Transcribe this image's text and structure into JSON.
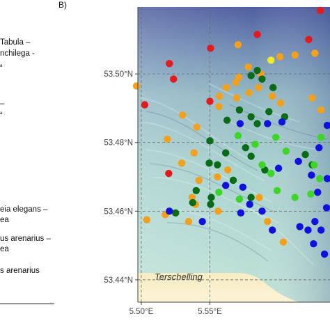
{
  "panel_label": "B)",
  "legend_fragments": [
    "Tabula –",
    "nchilega -",
    "ᵃ",
    "–",
    "ᵃ",
    "eia elegans –",
    "ea",
    "us arenarius –",
    "ea",
    "s arenarius"
  ],
  "axes": {
    "lat_ticks": [
      {
        "value": 53.5,
        "label": "53.50°N"
      },
      {
        "value": 53.48,
        "label": "53.48°N"
      },
      {
        "value": 53.46,
        "label": "53.46°N"
      },
      {
        "value": 53.44,
        "label": "53.44°N"
      }
    ],
    "lon_ticks": [
      {
        "value": 5.5,
        "label": "5.50°E"
      },
      {
        "value": 5.55,
        "label": "5.55°E"
      }
    ],
    "lon_range": [
      5.4975,
      5.6375
    ],
    "lat_range": [
      53.4335,
      53.5195
    ],
    "grid": "dashed",
    "place_label": "Terschelling"
  },
  "colors": {
    "red": "#e41a1c",
    "orange": "#f5a01a",
    "yellow": "#f2ef1d",
    "light_green": "#3dd626",
    "dark_green": "#0a6b16",
    "blue": "#1010e0"
  },
  "points": [
    {
      "lon": 5.4965,
      "lat": 53.4965,
      "group": "orange"
    },
    {
      "lon": 5.5235,
      "lat": 53.4985,
      "group": "red"
    },
    {
      "lon": 5.5205,
      "lat": 53.503,
      "group": "red"
    },
    {
      "lon": 5.5505,
      "lat": 53.5075,
      "group": "red"
    },
    {
      "lon": 5.5845,
      "lat": 53.5115,
      "group": "red"
    },
    {
      "lon": 5.622,
      "lat": 53.51,
      "group": "red"
    },
    {
      "lon": 5.6305,
      "lat": 53.5185,
      "group": "red"
    },
    {
      "lon": 5.5025,
      "lat": 53.491,
      "group": "red"
    },
    {
      "lon": 5.55,
      "lat": 53.492,
      "group": "red"
    },
    {
      "lon": 5.52,
      "lat": 53.471,
      "group": "red"
    },
    {
      "lon": 5.5705,
      "lat": 53.5085,
      "group": "orange"
    },
    {
      "lon": 5.601,
      "lat": 53.505,
      "group": "orange"
    },
    {
      "lon": 5.612,
      "lat": 53.5055,
      "group": "orange"
    },
    {
      "lon": 5.6265,
      "lat": 53.506,
      "group": "orange"
    },
    {
      "lon": 5.5945,
      "lat": 53.504,
      "group": "yellow"
    },
    {
      "lon": 5.587,
      "lat": 53.5,
      "group": "orange"
    },
    {
      "lon": 5.578,
      "lat": 53.502,
      "group": "orange"
    },
    {
      "lon": 5.571,
      "lat": 53.499,
      "group": "orange"
    },
    {
      "lon": 5.569,
      "lat": 53.4975,
      "group": "orange"
    },
    {
      "lon": 5.5855,
      "lat": 53.496,
      "group": "orange"
    },
    {
      "lon": 5.562,
      "lat": 53.496,
      "group": "orange"
    },
    {
      "lon": 5.5785,
      "lat": 53.4945,
      "group": "orange"
    },
    {
      "lon": 5.5695,
      "lat": 53.493,
      "group": "orange"
    },
    {
      "lon": 5.557,
      "lat": 53.4935,
      "group": "orange"
    },
    {
      "lon": 5.5955,
      "lat": 53.4935,
      "group": "orange"
    },
    {
      "lon": 5.6015,
      "lat": 53.4915,
      "group": "orange"
    },
    {
      "lon": 5.6245,
      "lat": 53.493,
      "group": "orange"
    },
    {
      "lon": 5.631,
      "lat": 53.4895,
      "group": "orange"
    },
    {
      "lon": 5.5405,
      "lat": 53.4845,
      "group": "orange"
    },
    {
      "lon": 5.53,
      "lat": 53.488,
      "group": "orange"
    },
    {
      "lon": 5.519,
      "lat": 53.481,
      "group": "orange"
    },
    {
      "lon": 5.5565,
      "lat": 53.4905,
      "group": "orange"
    },
    {
      "lon": 5.5385,
      "lat": 53.477,
      "group": "orange"
    },
    {
      "lon": 5.5295,
      "lat": 53.474,
      "group": "orange"
    },
    {
      "lon": 5.542,
      "lat": 53.469,
      "group": "orange"
    },
    {
      "lon": 5.537,
      "lat": 53.464,
      "group": "orange"
    },
    {
      "lon": 5.5395,
      "lat": 53.462,
      "group": "orange"
    },
    {
      "lon": 5.5175,
      "lat": 53.459,
      "group": "orange"
    },
    {
      "lon": 5.563,
      "lat": 53.472,
      "group": "orange"
    },
    {
      "lon": 5.5555,
      "lat": 53.47,
      "group": "orange"
    },
    {
      "lon": 5.504,
      "lat": 53.4575,
      "group": "orange"
    },
    {
      "lon": 5.5345,
      "lat": 53.457,
      "group": "orange"
    },
    {
      "lon": 5.556,
      "lat": 53.46,
      "group": "orange"
    },
    {
      "lon": 5.586,
      "lat": 53.464,
      "group": "orange"
    },
    {
      "lon": 5.592,
      "lat": 53.457,
      "group": "orange"
    },
    {
      "lon": 5.6035,
      "lat": 53.451,
      "group": "orange"
    },
    {
      "lon": 5.58,
      "lat": 53.4995,
      "group": "dark_green"
    },
    {
      "lon": 5.5845,
      "lat": 53.501,
      "group": "dark_green"
    },
    {
      "lon": 5.588,
      "lat": 53.4985,
      "group": "dark_green"
    },
    {
      "lon": 5.596,
      "lat": 53.496,
      "group": "dark_green"
    },
    {
      "lon": 5.593,
      "lat": 53.489,
      "group": "dark_green"
    },
    {
      "lon": 5.5715,
      "lat": 53.4895,
      "group": "dark_green"
    },
    {
      "lon": 5.58,
      "lat": 53.4875,
      "group": "dark_green"
    },
    {
      "lon": 5.5625,
      "lat": 53.4865,
      "group": "dark_green"
    },
    {
      "lon": 5.5845,
      "lat": 53.4855,
      "group": "dark_green"
    },
    {
      "lon": 5.6045,
      "lat": 53.4875,
      "group": "dark_green"
    },
    {
      "lon": 5.576,
      "lat": 53.4785,
      "group": "dark_green"
    },
    {
      "lon": 5.5615,
      "lat": 53.477,
      "group": "dark_green"
    },
    {
      "lon": 5.55,
      "lat": 53.4805,
      "group": "dark_green"
    },
    {
      "lon": 5.5495,
      "lat": 53.474,
      "group": "dark_green"
    },
    {
      "lon": 5.5555,
      "lat": 53.4735,
      "group": "dark_green"
    },
    {
      "lon": 5.58,
      "lat": 53.476,
      "group": "dark_green"
    },
    {
      "lon": 5.59,
      "lat": 53.472,
      "group": "dark_green"
    },
    {
      "lon": 5.567,
      "lat": 53.469,
      "group": "dark_green"
    },
    {
      "lon": 5.54,
      "lat": 53.466,
      "group": "dark_green"
    },
    {
      "lon": 5.5375,
      "lat": 53.4625,
      "group": "dark_green"
    },
    {
      "lon": 5.551,
      "lat": 53.464,
      "group": "dark_green"
    },
    {
      "lon": 5.58,
      "lat": 53.464,
      "group": "dark_green"
    },
    {
      "lon": 5.5505,
      "lat": 53.462,
      "group": "dark_green"
    },
    {
      "lon": 5.525,
      "lat": 53.4595,
      "group": "dark_green"
    },
    {
      "lon": 5.6195,
      "lat": 53.4765,
      "group": "dark_green"
    },
    {
      "lon": 5.6245,
      "lat": 53.4735,
      "group": "dark_green"
    },
    {
      "lon": 5.583,
      "lat": 53.4795,
      "group": "light_green"
    },
    {
      "lon": 5.5705,
      "lat": 53.482,
      "group": "light_green"
    },
    {
      "lon": 5.598,
      "lat": 53.4815,
      "group": "light_green"
    },
    {
      "lon": 5.6055,
      "lat": 53.4775,
      "group": "light_green"
    },
    {
      "lon": 5.588,
      "lat": 53.4735,
      "group": "light_green"
    },
    {
      "lon": 5.5945,
      "lat": 53.471,
      "group": "light_green"
    },
    {
      "lon": 5.599,
      "lat": 53.466,
      "group": "light_green"
    },
    {
      "lon": 5.5715,
      "lat": 53.4635,
      "group": "light_green"
    },
    {
      "lon": 5.5565,
      "lat": 53.4655,
      "group": "light_green"
    },
    {
      "lon": 5.612,
      "lat": 53.464,
      "group": "light_green"
    },
    {
      "lon": 5.631,
      "lat": 53.4815,
      "group": "light_green"
    },
    {
      "lon": 5.626,
      "lat": 53.4735,
      "group": "light_green"
    },
    {
      "lon": 5.6235,
      "lat": 53.465,
      "group": "light_green"
    },
    {
      "lon": 5.63,
      "lat": 53.4695,
      "group": "light_green"
    },
    {
      "lon": 5.592,
      "lat": 53.4855,
      "group": "blue"
    },
    {
      "lon": 5.572,
      "lat": 53.4855,
      "group": "blue"
    },
    {
      "lon": 5.6025,
      "lat": 53.486,
      "group": "blue"
    },
    {
      "lon": 5.6355,
      "lat": 53.485,
      "group": "blue"
    },
    {
      "lon": 5.6295,
      "lat": 53.4785,
      "group": "blue"
    },
    {
      "lon": 5.6145,
      "lat": 53.4745,
      "group": "blue"
    },
    {
      "lon": 5.6,
      "lat": 53.4725,
      "group": "blue"
    },
    {
      "lon": 5.624,
      "lat": 53.4705,
      "group": "blue"
    },
    {
      "lon": 5.5615,
      "lat": 53.4675,
      "group": "blue"
    },
    {
      "lon": 5.574,
      "lat": 53.467,
      "group": "blue"
    },
    {
      "lon": 5.6285,
      "lat": 53.4655,
      "group": "blue"
    },
    {
      "lon": 5.579,
      "lat": 53.462,
      "group": "blue"
    },
    {
      "lon": 5.588,
      "lat": 53.46,
      "group": "blue"
    },
    {
      "lon": 5.5725,
      "lat": 53.4595,
      "group": "blue"
    },
    {
      "lon": 5.5955,
      "lat": 53.4545,
      "group": "blue"
    },
    {
      "lon": 5.5445,
      "lat": 53.457,
      "group": "blue"
    },
    {
      "lon": 5.6155,
      "lat": 53.4555,
      "group": "blue"
    },
    {
      "lon": 5.6215,
      "lat": 53.4545,
      "group": "blue"
    },
    {
      "lon": 5.631,
      "lat": 53.4545,
      "group": "blue"
    },
    {
      "lon": 5.6255,
      "lat": 53.4505,
      "group": "blue"
    },
    {
      "lon": 5.6265,
      "lat": 53.457,
      "group": "blue"
    },
    {
      "lon": 5.5205,
      "lat": 53.46,
      "group": "blue"
    },
    {
      "lon": 5.6335,
      "lat": 53.4475,
      "group": "blue"
    },
    {
      "lon": 5.635,
      "lat": 53.461,
      "group": "blue"
    },
    {
      "lon": 5.6355,
      "lat": 53.4695,
      "group": "blue"
    }
  ]
}
